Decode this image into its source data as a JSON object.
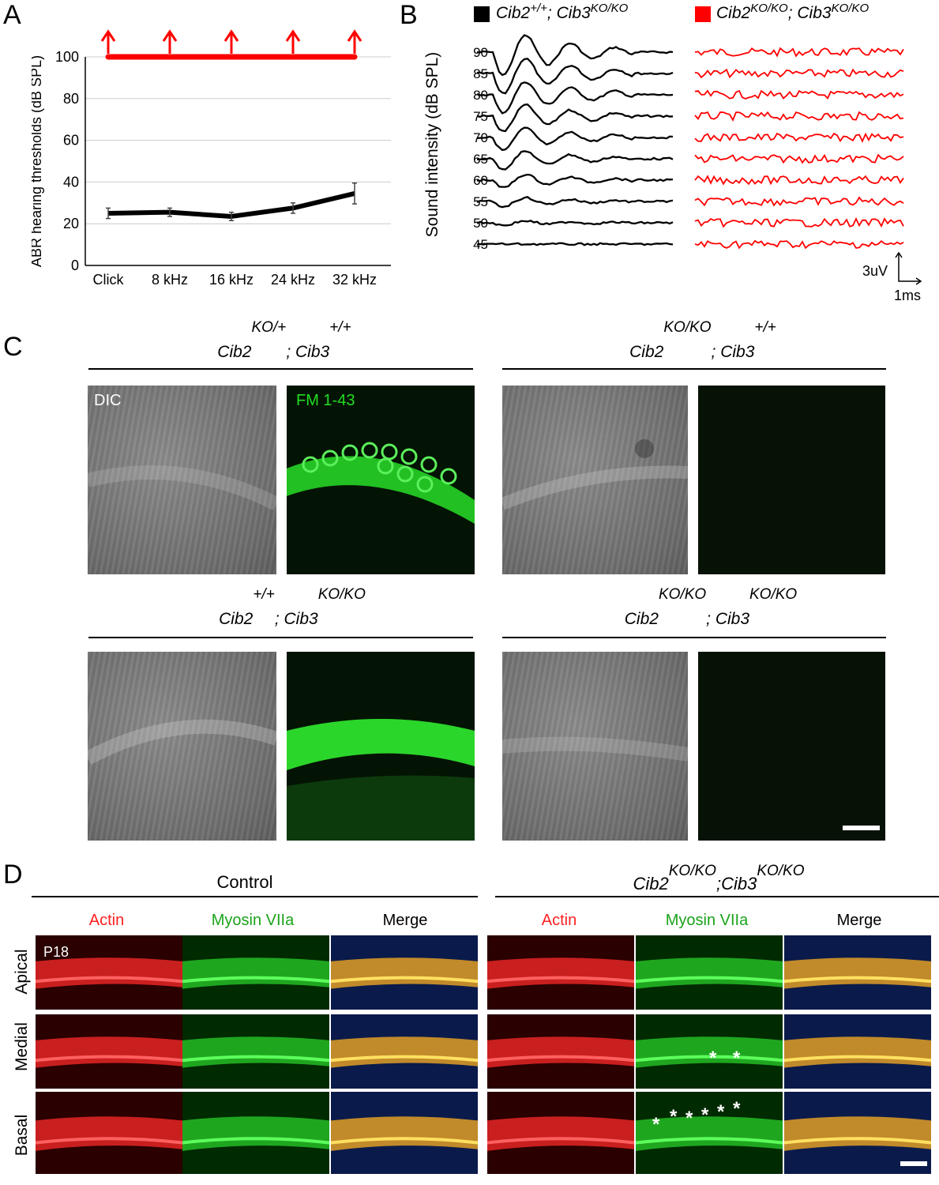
{
  "panels": {
    "A": "A",
    "B": "B",
    "C": "C",
    "D": "D"
  },
  "chart_data": {
    "type": "line",
    "categories": [
      "Click",
      "8 kHz",
      "16 kHz",
      "24 kHz",
      "32 kHz"
    ],
    "series": [
      {
        "values": [
          25,
          25.5,
          23.5,
          27.5,
          34.5
        ],
        "error": [
          2.5,
          2.0,
          2.0,
          2.5,
          5.0
        ],
        "color": "#000000"
      },
      {
        "values": [
          100,
          100,
          100,
          100,
          100
        ],
        "color": "#ff0000"
      }
    ],
    "ylabel": "ABR hearing thresholds (dB SPL)",
    "yticks": [
      "0",
      "20",
      "40",
      "60",
      "80",
      "100"
    ],
    "ylim": [
      0,
      100
    ],
    "grid": true
  },
  "panelB": {
    "legend_black": {
      "gene1": "Cib2",
      "sup1": "+/+",
      "sep": "; ",
      "gene2": "Cib3",
      "sup2": "KO/KO",
      "color": "#000000"
    },
    "legend_red": {
      "gene1": "Cib2",
      "sup1": "KO/KO",
      "sep": "; ",
      "gene2": "Cib3",
      "sup2": "KO/KO",
      "color": "#ff0000"
    },
    "ylabel": "Sound intensity (dB SPL)",
    "levels": [
      "90",
      "85",
      "80",
      "75",
      "70",
      "65",
      "60",
      "55",
      "50",
      "45"
    ],
    "scale_v": "3uV",
    "scale_h": "1ms"
  },
  "panelC": {
    "groups": [
      {
        "gene1": "Cib2",
        "sup1": "KO/+",
        "sep": "; ",
        "gene2": "Cib3",
        "sup2": "+/+"
      },
      {
        "gene1": "Cib2",
        "sup1": "KO/KO",
        "sep": "; ",
        "gene2": "Cib3",
        "sup2": "+/+"
      },
      {
        "gene1": "Cib2",
        "sup1": "+/+",
        "sep": "; ",
        "gene2": "Cib3",
        "sup2": "KO/KO"
      },
      {
        "gene1": "Cib2",
        "sup1": "KO/KO",
        "sep": "; ",
        "gene2": "Cib3",
        "sup2": "KO/KO"
      }
    ],
    "dic_label": "DIC",
    "fm_label": "FM 1-43"
  },
  "panelD": {
    "control": "Control",
    "mutant": {
      "gene1": "Cib2",
      "sup1": "KO/KO",
      "sep": ";",
      "gene2": "Cib3",
      "sup2": "KO/KO"
    },
    "channels": [
      "Actin",
      "Myosin VIIa",
      "Merge"
    ],
    "rows": [
      "Apical",
      "Medial",
      "Basal"
    ],
    "age": "P18",
    "asterisk": "*"
  }
}
